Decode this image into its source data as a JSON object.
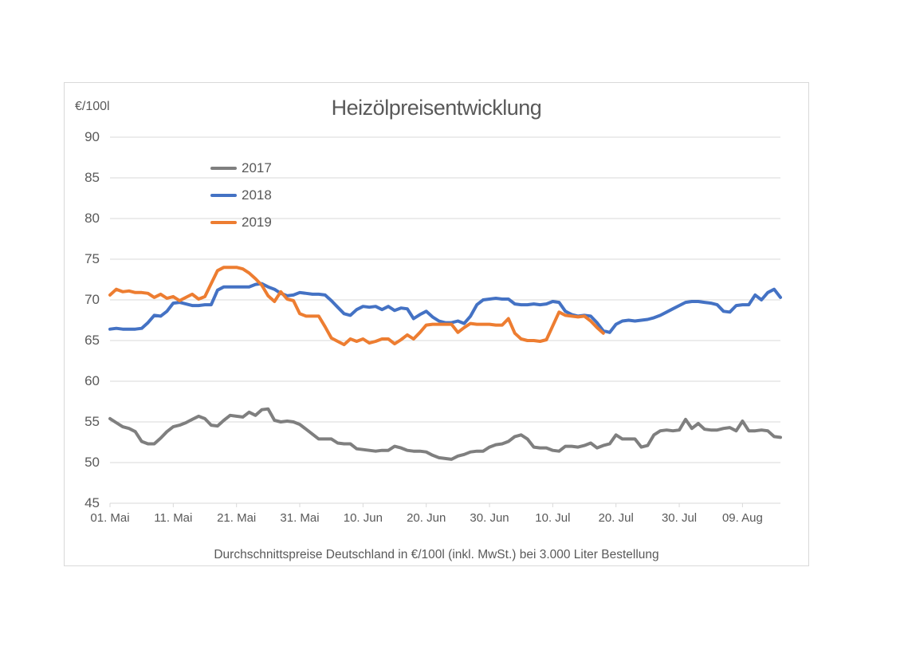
{
  "chart": {
    "border_color": "#d9d9d9",
    "gridline_color": "#d9d9d9",
    "text_color": "#595959",
    "background": "#ffffff"
  },
  "chart_data": {
    "type": "line",
    "title": "Heizölpreisentwicklung",
    "y_unit_label": "€/100l",
    "caption": "Durchschnittspreise Deutschland in €/100l (inkl. MwSt.) bei 3.000 Liter Bestellung",
    "ylim": [
      45,
      90
    ],
    "y_ticks": [
      90,
      85,
      80,
      75,
      70,
      65,
      60,
      55,
      50,
      45
    ],
    "grid": "horizontal",
    "legend_position": "upper-left-vertical",
    "x_tick_labels": [
      "01. Mai",
      "11. Mai",
      "21. Mai",
      "31. Mai",
      "10. Jun",
      "20. Jun",
      "30. Jun",
      "10. Jul",
      "20. Jul",
      "30. Jul",
      "09. Aug"
    ],
    "x_tick_days": [
      0,
      10,
      20,
      30,
      40,
      50,
      60,
      70,
      80,
      90,
      100
    ],
    "x_range_days": [
      0,
      106
    ],
    "x_days_per_point": 1,
    "series": [
      {
        "name": "2017",
        "color": "#7f7f7f",
        "start_label": "01. Mai",
        "values": [
          55.4,
          54.9,
          54.4,
          54.2,
          53.8,
          52.6,
          52.3,
          52.3,
          53.0,
          53.8,
          54.4,
          54.6,
          54.9,
          55.3,
          55.7,
          55.4,
          54.6,
          54.5,
          55.2,
          55.8,
          55.7,
          55.6,
          56.2,
          55.8,
          56.5,
          56.6,
          55.2,
          55.0,
          55.1,
          55.0,
          54.7,
          54.1,
          53.5,
          52.9,
          52.9,
          52.9,
          52.4,
          52.3,
          52.3,
          51.7,
          51.6,
          51.5,
          51.4,
          51.5,
          51.5,
          52.0,
          51.8,
          51.5,
          51.4,
          51.4,
          51.3,
          50.9,
          50.6,
          50.5,
          50.4,
          50.8,
          51.0,
          51.3,
          51.4,
          51.4,
          51.9,
          52.2,
          52.3,
          52.6,
          53.2,
          53.4,
          52.9,
          51.9,
          51.8,
          51.8,
          51.5,
          51.4,
          52.0,
          52.0,
          51.9,
          52.1,
          52.4,
          51.8,
          52.1,
          52.3,
          53.4,
          52.9,
          52.9,
          52.9,
          51.9,
          52.1,
          53.4,
          53.9,
          54.0,
          53.9,
          54.0,
          55.3,
          54.2,
          54.8,
          54.1,
          54.0,
          54.0,
          54.2,
          54.3,
          53.9,
          55.1,
          53.9,
          53.9,
          54.0,
          53.9,
          53.2,
          53.1
        ]
      },
      {
        "name": "2018",
        "color": "#4472c4",
        "start_label": "01. Mai",
        "values": [
          66.4,
          66.5,
          66.4,
          66.4,
          66.4,
          66.5,
          67.2,
          68.1,
          68.0,
          68.6,
          69.6,
          69.7,
          69.5,
          69.3,
          69.3,
          69.4,
          69.4,
          71.2,
          71.6,
          71.6,
          71.6,
          71.6,
          71.6,
          71.9,
          72.0,
          71.6,
          71.3,
          70.8,
          70.5,
          70.6,
          70.9,
          70.8,
          70.7,
          70.7,
          70.6,
          69.9,
          69.1,
          68.3,
          68.1,
          68.8,
          69.2,
          69.1,
          69.2,
          68.8,
          69.2,
          68.7,
          69.0,
          68.9,
          67.7,
          68.2,
          68.6,
          67.9,
          67.4,
          67.2,
          67.2,
          67.4,
          67.1,
          68.0,
          69.4,
          70.0,
          70.1,
          70.2,
          70.1,
          70.1,
          69.5,
          69.4,
          69.4,
          69.5,
          69.4,
          69.5,
          69.8,
          69.7,
          68.6,
          68.2,
          68.0,
          68.1,
          68.0,
          67.2,
          66.2,
          66.0,
          67.0,
          67.4,
          67.5,
          67.4,
          67.5,
          67.6,
          67.8,
          68.1,
          68.5,
          68.9,
          69.3,
          69.7,
          69.8,
          69.8,
          69.7,
          69.6,
          69.4,
          68.6,
          68.5,
          69.3,
          69.4,
          69.4,
          70.6,
          70.0,
          70.9,
          71.3,
          70.3
        ]
      },
      {
        "name": "2019",
        "color": "#ed7d31",
        "start_label": "01. Mai",
        "values": [
          70.6,
          71.3,
          71.0,
          71.1,
          70.9,
          70.9,
          70.8,
          70.3,
          70.7,
          70.2,
          70.4,
          69.9,
          70.3,
          70.7,
          70.1,
          70.4,
          72.0,
          73.6,
          74.0,
          74.0,
          74.0,
          73.8,
          73.3,
          72.6,
          71.8,
          70.5,
          69.8,
          71.0,
          70.1,
          69.9,
          68.3,
          68.0,
          68.0,
          68.0,
          66.7,
          65.3,
          64.9,
          64.5,
          65.2,
          64.9,
          65.2,
          64.7,
          64.9,
          65.2,
          65.2,
          64.6,
          65.1,
          65.7,
          65.2,
          66.0,
          66.9,
          67.0,
          67.0,
          67.0,
          67.0,
          66.0,
          66.6,
          67.1,
          67.0,
          67.0,
          67.0,
          66.9,
          66.9,
          67.7,
          65.9,
          65.2,
          65.0,
          65.0,
          64.9,
          65.1,
          66.8,
          68.5,
          68.1,
          68.0,
          67.9,
          68.0,
          67.4,
          66.6,
          65.9
        ]
      }
    ]
  }
}
